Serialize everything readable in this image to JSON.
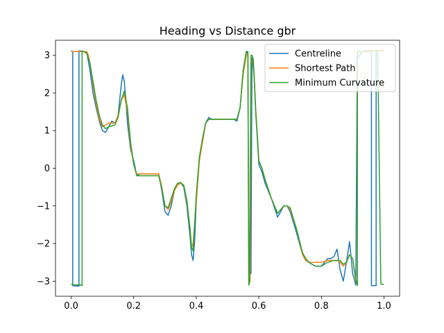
{
  "chart_data": {
    "type": "line",
    "title": "Heading vs Distance gbr",
    "xlabel": "",
    "ylabel": "",
    "xlim": [
      -0.05,
      1.05
    ],
    "ylim": [
      -3.4,
      3.4
    ],
    "xticks": [
      0.0,
      0.2,
      0.4,
      0.6,
      0.8,
      1.0
    ],
    "xtick_labels": [
      "0.0",
      "0.2",
      "0.4",
      "0.6",
      "0.8",
      "1.0"
    ],
    "yticks": [
      -3,
      -2,
      -1,
      0,
      1,
      2,
      3
    ],
    "ytick_labels": [
      "−3",
      "−2",
      "−1",
      "0",
      "1",
      "2",
      "3"
    ],
    "legend_position": "top-right",
    "series": [
      {
        "name": "Centreline",
        "color": "#1f77b4",
        "x": [
          0.0,
          0.005,
          0.005,
          0.025,
          0.025,
          0.04,
          0.05,
          0.06,
          0.07,
          0.08,
          0.09,
          0.1,
          0.11,
          0.12,
          0.13,
          0.14,
          0.15,
          0.16,
          0.165,
          0.17,
          0.175,
          0.18,
          0.19,
          0.2,
          0.21,
          0.22,
          0.24,
          0.26,
          0.28,
          0.29,
          0.3,
          0.31,
          0.32,
          0.33,
          0.34,
          0.35,
          0.36,
          0.37,
          0.38,
          0.385,
          0.39,
          0.395,
          0.4,
          0.41,
          0.42,
          0.43,
          0.44,
          0.45,
          0.46,
          0.48,
          0.5,
          0.52,
          0.53,
          0.54,
          0.55,
          0.56,
          0.565,
          0.568,
          0.572,
          0.575,
          0.578,
          0.58,
          0.582,
          0.585,
          0.59,
          0.6,
          0.61,
          0.62,
          0.64,
          0.66,
          0.68,
          0.69,
          0.7,
          0.72,
          0.74,
          0.75,
          0.76,
          0.77,
          0.78,
          0.8,
          0.82,
          0.83,
          0.84,
          0.85,
          0.86,
          0.87,
          0.88,
          0.89,
          0.9,
          0.91,
          0.915,
          0.915,
          0.93,
          0.95,
          0.96,
          0.96,
          0.975,
          0.975,
          0.99,
          1.0
        ],
        "y": [
          3.12,
          3.1,
          -3.12,
          -3.13,
          3.12,
          3.1,
          3.08,
          2.6,
          2.0,
          1.6,
          1.25,
          1.0,
          0.95,
          1.1,
          1.25,
          1.2,
          1.4,
          2.2,
          2.48,
          2.3,
          1.8,
          1.2,
          0.5,
          0.2,
          -0.2,
          -0.15,
          -0.15,
          -0.15,
          -0.15,
          -0.6,
          -1.15,
          -1.25,
          -1.0,
          -0.6,
          -0.4,
          -0.38,
          -0.5,
          -1.0,
          -1.8,
          -2.3,
          -2.45,
          -1.9,
          -0.9,
          0.3,
          0.7,
          1.2,
          1.35,
          1.3,
          1.3,
          1.3,
          1.3,
          1.3,
          1.25,
          1.6,
          2.6,
          3.1,
          3.05,
          -2.8,
          -2.7,
          -2.8,
          2.9,
          2.95,
          2.9,
          2.5,
          1.5,
          0.1,
          -0.1,
          -0.4,
          -0.8,
          -1.3,
          -1.0,
          -1.0,
          -1.15,
          -1.7,
          -2.3,
          -2.45,
          -2.5,
          -2.55,
          -2.6,
          -2.6,
          -2.4,
          -2.4,
          -2.35,
          -2.15,
          -2.7,
          -3.0,
          -2.5,
          -1.95,
          -2.8,
          -3.1,
          3.1,
          2.9,
          3.1,
          3.12,
          3.12,
          -3.12,
          -3.12,
          3.12,
          3.13,
          3.13
        ]
      },
      {
        "name": "Shortest Path",
        "color": "#ff7f0e",
        "x": [
          0.0,
          0.02,
          0.03,
          0.04,
          0.045,
          0.05,
          0.055,
          0.06,
          0.07,
          0.08,
          0.09,
          0.1,
          0.11,
          0.12,
          0.14,
          0.15,
          0.16,
          0.17,
          0.18,
          0.19,
          0.2,
          0.21,
          0.22,
          0.24,
          0.26,
          0.28,
          0.29,
          0.3,
          0.31,
          0.32,
          0.33,
          0.34,
          0.35,
          0.36,
          0.37,
          0.38,
          0.385,
          0.39,
          0.4,
          0.41,
          0.42,
          0.43,
          0.44,
          0.45,
          0.46,
          0.48,
          0.5,
          0.52,
          0.53,
          0.54,
          0.55,
          0.56,
          0.565,
          0.568,
          0.572,
          0.575,
          0.58,
          0.585,
          0.59,
          0.6,
          0.61,
          0.62,
          0.64,
          0.66,
          0.68,
          0.69,
          0.7,
          0.72,
          0.74,
          0.75,
          0.76,
          0.77,
          0.78,
          0.8,
          0.82,
          0.84,
          0.85,
          0.86,
          0.87,
          0.88,
          0.89,
          0.9,
          0.91,
          0.915,
          0.915,
          0.93,
          0.95,
          0.97,
          0.98,
          1.0
        ],
        "y": [
          3.1,
          3.1,
          3.1,
          3.1,
          3.1,
          3.1,
          3.0,
          2.8,
          2.2,
          1.7,
          1.3,
          1.1,
          1.15,
          1.2,
          1.2,
          1.4,
          1.8,
          1.95,
          1.5,
          0.6,
          0.1,
          -0.15,
          -0.15,
          -0.15,
          -0.15,
          -0.15,
          -0.5,
          -1.0,
          -1.1,
          -0.9,
          -0.6,
          -0.45,
          -0.4,
          -0.45,
          -0.9,
          -1.6,
          -2.1,
          -2.0,
          -0.9,
          0.2,
          0.7,
          1.2,
          1.3,
          1.3,
          1.3,
          1.3,
          1.3,
          1.3,
          1.3,
          1.6,
          2.5,
          3.0,
          3.05,
          -3.05,
          -3.0,
          2.9,
          2.8,
          2.5,
          1.6,
          0.2,
          0.0,
          -0.3,
          -0.8,
          -1.2,
          -1.0,
          -1.0,
          -1.1,
          -1.6,
          -2.3,
          -2.45,
          -2.5,
          -2.5,
          -2.5,
          -2.5,
          -2.45,
          -2.45,
          -2.45,
          -2.5,
          -2.6,
          -2.5,
          -2.3,
          -2.4,
          -3.0,
          -3.05,
          3.1,
          3.1,
          3.1,
          3.12,
          3.12,
          3.12
        ]
      },
      {
        "name": "Minimum Curvature",
        "color": "#2ca02c",
        "x": [
          0.0,
          0.01,
          0.02,
          0.03,
          0.035,
          0.035,
          0.04,
          0.05,
          0.06,
          0.07,
          0.08,
          0.09,
          0.1,
          0.11,
          0.12,
          0.14,
          0.15,
          0.16,
          0.17,
          0.18,
          0.19,
          0.2,
          0.21,
          0.22,
          0.24,
          0.26,
          0.28,
          0.29,
          0.3,
          0.31,
          0.32,
          0.33,
          0.34,
          0.35,
          0.36,
          0.37,
          0.38,
          0.385,
          0.39,
          0.4,
          0.41,
          0.42,
          0.43,
          0.44,
          0.45,
          0.46,
          0.48,
          0.5,
          0.52,
          0.53,
          0.54,
          0.55,
          0.56,
          0.565,
          0.568,
          0.57,
          0.575,
          0.578,
          0.58,
          0.585,
          0.59,
          0.6,
          0.61,
          0.62,
          0.64,
          0.66,
          0.68,
          0.69,
          0.7,
          0.72,
          0.74,
          0.75,
          0.76,
          0.77,
          0.78,
          0.8,
          0.82,
          0.84,
          0.85,
          0.86,
          0.87,
          0.88,
          0.89,
          0.9,
          0.91,
          0.915,
          0.915,
          0.93,
          0.95,
          0.97,
          0.98,
          0.98,
          0.99,
          1.0
        ],
        "y": [
          -3.08,
          -3.1,
          -3.1,
          -3.1,
          -3.12,
          3.12,
          3.1,
          3.05,
          2.8,
          2.3,
          1.8,
          1.4,
          1.15,
          1.05,
          1.1,
          1.15,
          1.35,
          1.8,
          2.05,
          1.6,
          0.7,
          0.1,
          -0.2,
          -0.2,
          -0.2,
          -0.2,
          -0.2,
          -0.55,
          -1.0,
          -1.05,
          -0.8,
          -0.55,
          -0.4,
          -0.38,
          -0.45,
          -0.85,
          -1.6,
          -2.1,
          -2.2,
          -0.7,
          0.3,
          0.8,
          1.2,
          1.3,
          1.3,
          1.3,
          1.3,
          1.3,
          1.3,
          1.3,
          1.6,
          2.6,
          3.1,
          3.1,
          -3.1,
          -3.05,
          3.0,
          3.0,
          2.95,
          2.4,
          1.5,
          0.2,
          0.0,
          -0.3,
          -0.8,
          -1.2,
          -1.0,
          -1.0,
          -1.05,
          -1.6,
          -2.25,
          -2.4,
          -2.5,
          -2.55,
          -2.6,
          -2.6,
          -2.5,
          -2.45,
          -2.45,
          -2.45,
          -2.55,
          -2.5,
          -2.3,
          -2.4,
          -2.95,
          -3.12,
          3.1,
          3.1,
          3.12,
          3.12,
          3.12,
          3.12,
          -3.08,
          -3.08
        ]
      }
    ]
  }
}
